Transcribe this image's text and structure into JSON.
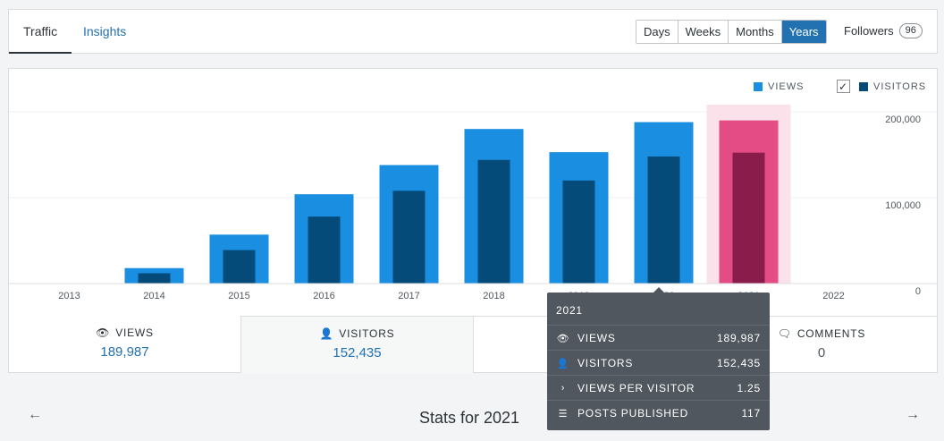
{
  "tabs": {
    "traffic": "Traffic",
    "insights": "Insights"
  },
  "periods": [
    "Days",
    "Weeks",
    "Months",
    "Years"
  ],
  "followers": {
    "label": "Followers",
    "count": "96"
  },
  "legend": {
    "views": "VIEWS",
    "visitors": "VISITORS"
  },
  "colors": {
    "views": "#1a8ee1",
    "visitors": "#044b7a",
    "views_selected": "#e34c84",
    "visitors_selected": "#8a1c4b",
    "selected_bg": "#fbe1ea"
  },
  "chart_data": {
    "type": "bar",
    "categories": [
      "2013",
      "2014",
      "2015",
      "2016",
      "2017",
      "2018",
      "2019",
      "2020",
      "2021",
      "2022"
    ],
    "series": [
      {
        "name": "VIEWS",
        "values": [
          0,
          18000,
          57000,
          104000,
          138000,
          180000,
          153000,
          188000,
          189987,
          0
        ]
      },
      {
        "name": "VISITORS",
        "values": [
          0,
          12000,
          39000,
          78000,
          108000,
          144000,
          120000,
          148000,
          152435,
          0
        ]
      }
    ],
    "selected_category": "2021",
    "y_ticks": [
      "200,000",
      "100,000",
      "0"
    ],
    "ylim": [
      0,
      200000
    ],
    "grid": true,
    "legend_position": "top-right"
  },
  "stats": [
    {
      "label": "VIEWS",
      "value": "189,987",
      "icon": "eye-icon"
    },
    {
      "label": "VISITORS",
      "value": "152,435",
      "icon": "person-icon"
    },
    {
      "label": "COMMENTS",
      "value": "0",
      "icon": "comment-icon"
    }
  ],
  "tooltip": {
    "title": "2021",
    "rows": [
      {
        "label": "VIEWS",
        "value": "189,987",
        "icon": "eye-icon"
      },
      {
        "label": "VISITORS",
        "value": "152,435",
        "icon": "person-icon"
      },
      {
        "label": "VIEWS PER VISITOR",
        "value": "1.25",
        "icon": "chevron-right-icon"
      },
      {
        "label": "POSTS PUBLISHED",
        "value": "117",
        "icon": "list-icon"
      }
    ]
  },
  "footer": {
    "title": "Stats for 2021"
  }
}
